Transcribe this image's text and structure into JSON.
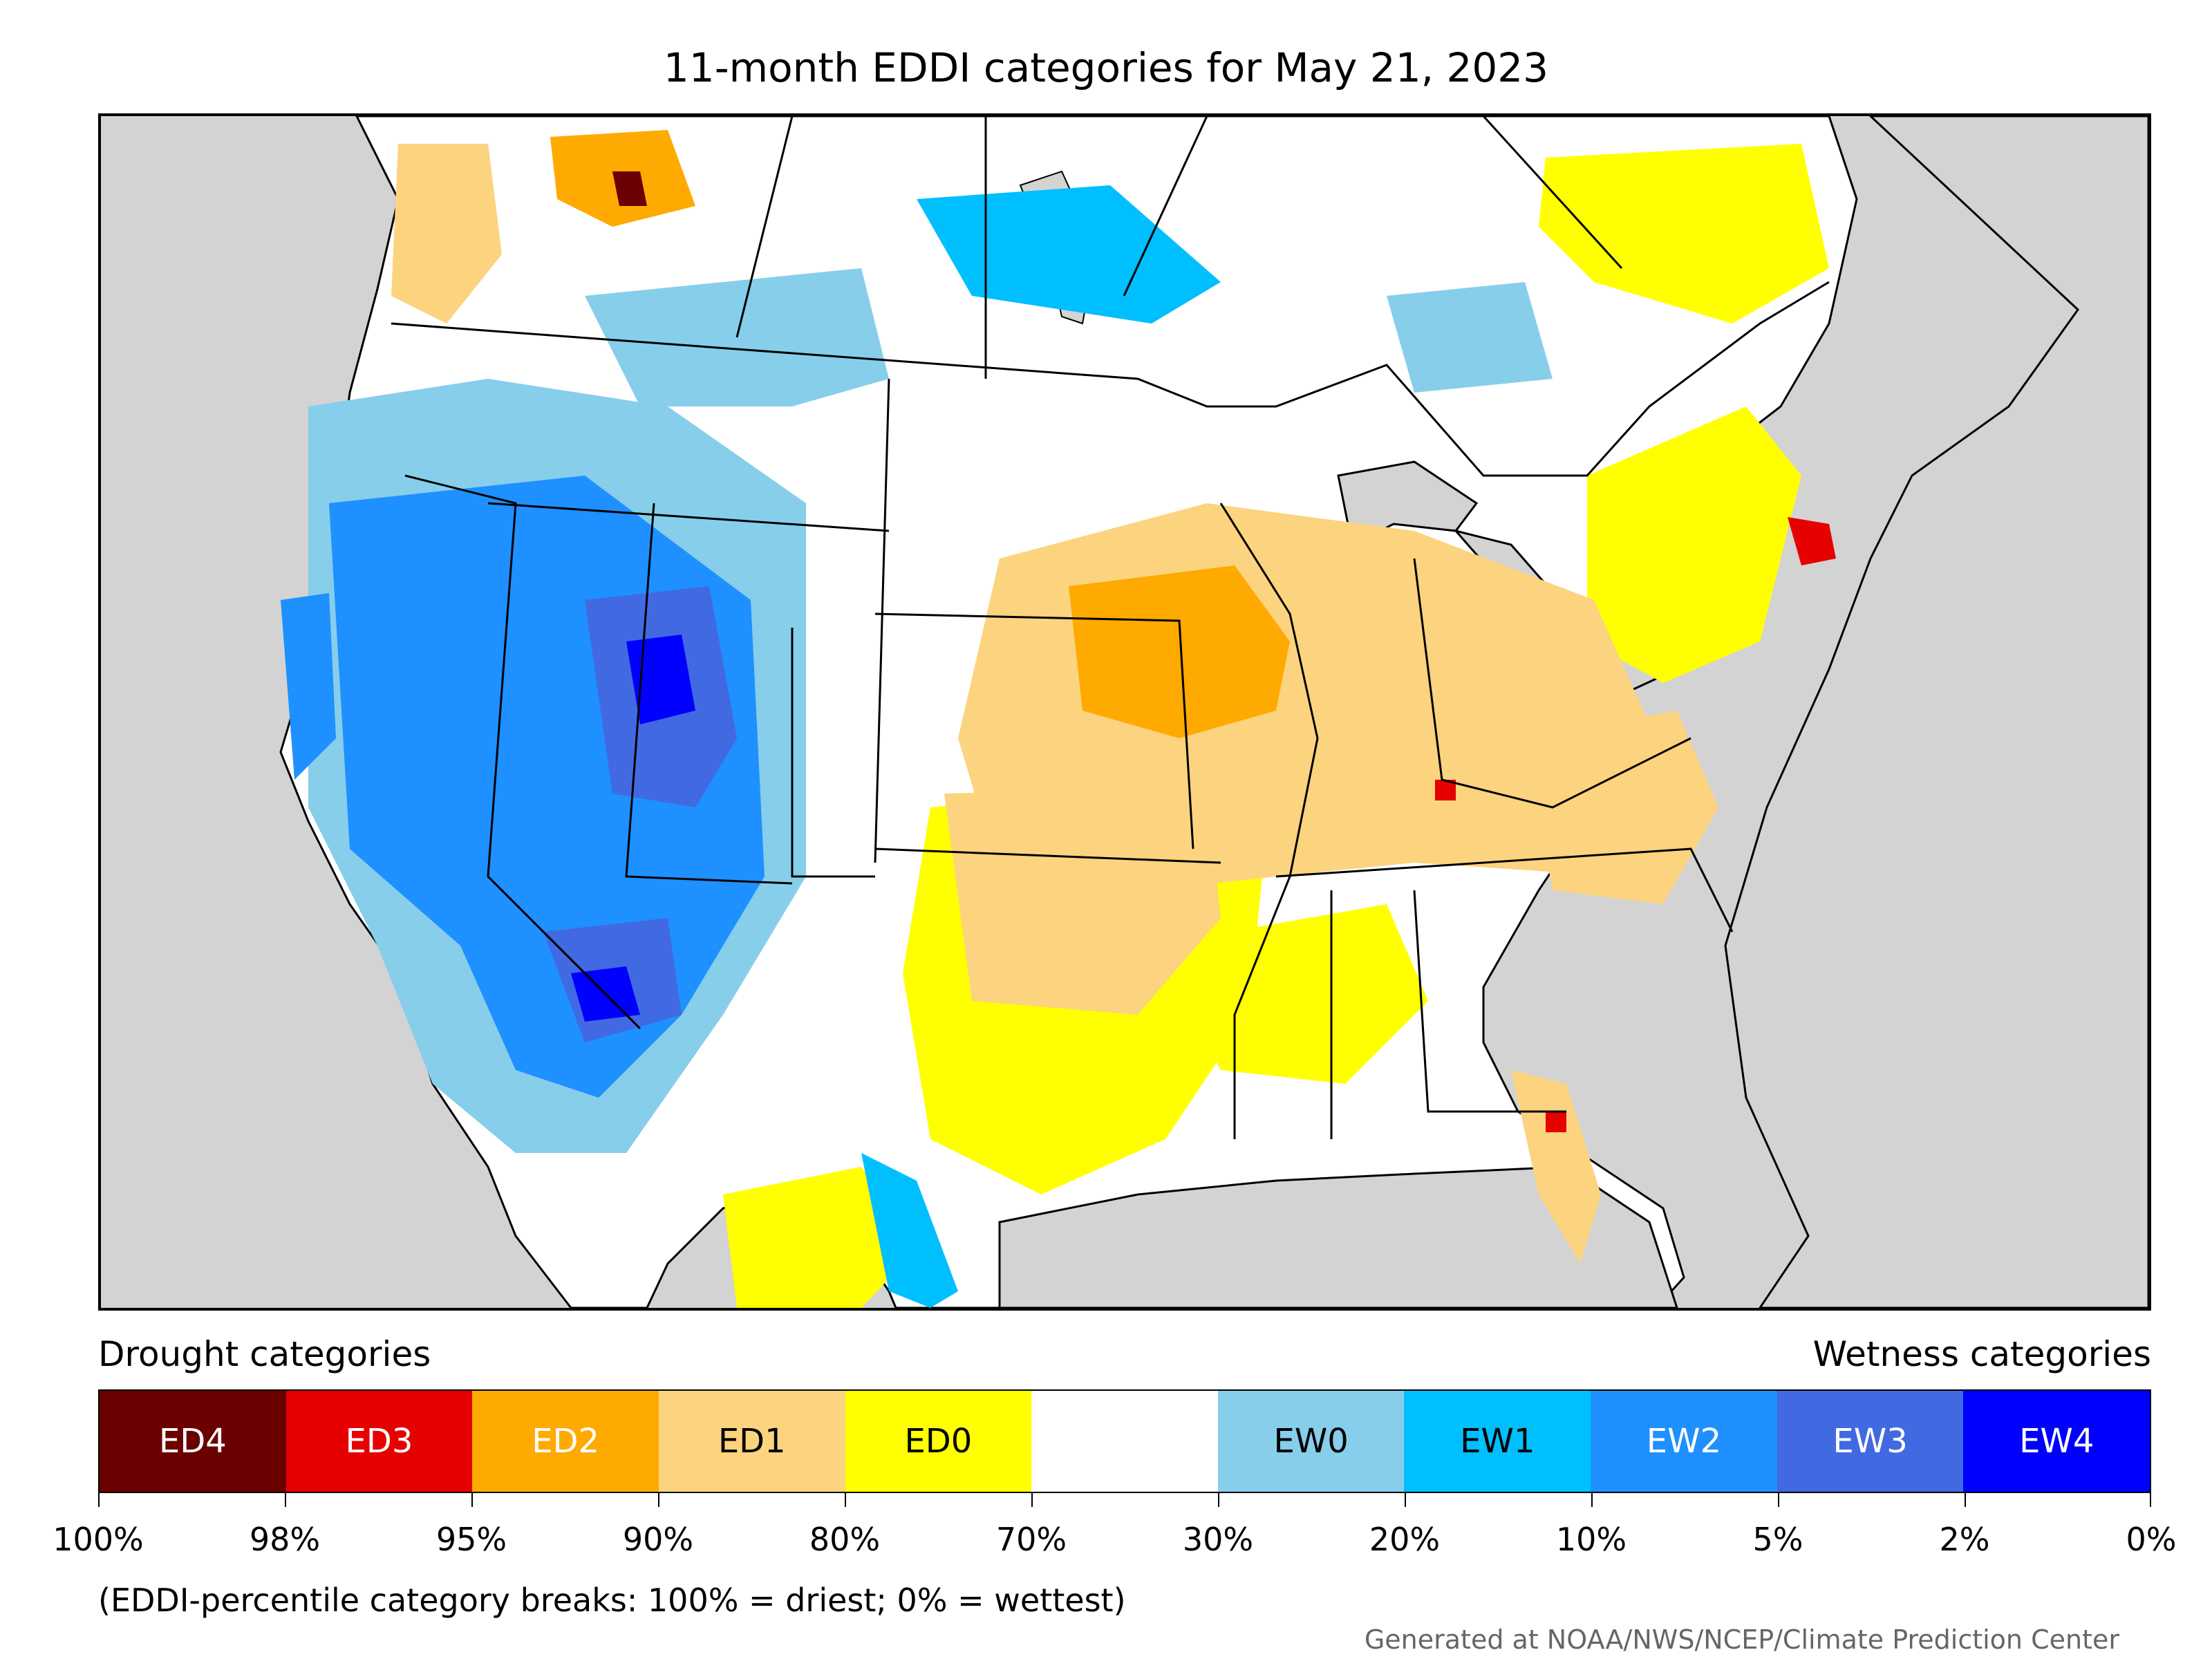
{
  "title": "11-month EDDI categories for May 21, 2023",
  "legend": {
    "drought_heading": "Drought categories",
    "wetness_heading": "Wetness categories",
    "categories": [
      {
        "label": "ED4",
        "color": "#6b0000",
        "text_color": "#ffffff"
      },
      {
        "label": "ED3",
        "color": "#e60000",
        "text_color": "#ffffff"
      },
      {
        "label": "ED2",
        "color": "#ffaa00",
        "text_color": "#ffffff"
      },
      {
        "label": "ED1",
        "color": "#fcd37f",
        "text_color": "#000000"
      },
      {
        "label": "ED0",
        "color": "#ffff00",
        "text_color": "#000000"
      },
      {
        "label": "",
        "color": "#ffffff",
        "text_color": "#000000"
      },
      {
        "label": "EW0",
        "color": "#87ceeb",
        "text_color": "#000000"
      },
      {
        "label": "EW1",
        "color": "#00bfff",
        "text_color": "#000000"
      },
      {
        "label": "EW2",
        "color": "#1e90ff",
        "text_color": "#ffffff"
      },
      {
        "label": "EW3",
        "color": "#4169e1",
        "text_color": "#ffffff"
      },
      {
        "label": "EW4",
        "color": "#0000ff",
        "text_color": "#ffffff"
      }
    ],
    "tick_labels": [
      "100%",
      "98%",
      "95%",
      "90%",
      "80%",
      "70%",
      "30%",
      "20%",
      "10%",
      "5%",
      "2%",
      "0%"
    ]
  },
  "note": "(EDDI-percentile category breaks: 100% = driest; 0% = wettest)",
  "credit": "Generated at NOAA/NWS/NCEP/Climate Prediction Center",
  "colors": {
    "ocean": "#d3d3d3",
    "land": "#ffffff",
    "ed4": "#6b0000",
    "ed3": "#e60000",
    "ed2": "#ffaa00",
    "ed1": "#fcd37f",
    "ed0": "#ffff00",
    "ew0": "#87ceeb",
    "ew1": "#00bfff",
    "ew2": "#1e90ff",
    "ew3": "#4169e1",
    "ew4": "#0000ff"
  }
}
